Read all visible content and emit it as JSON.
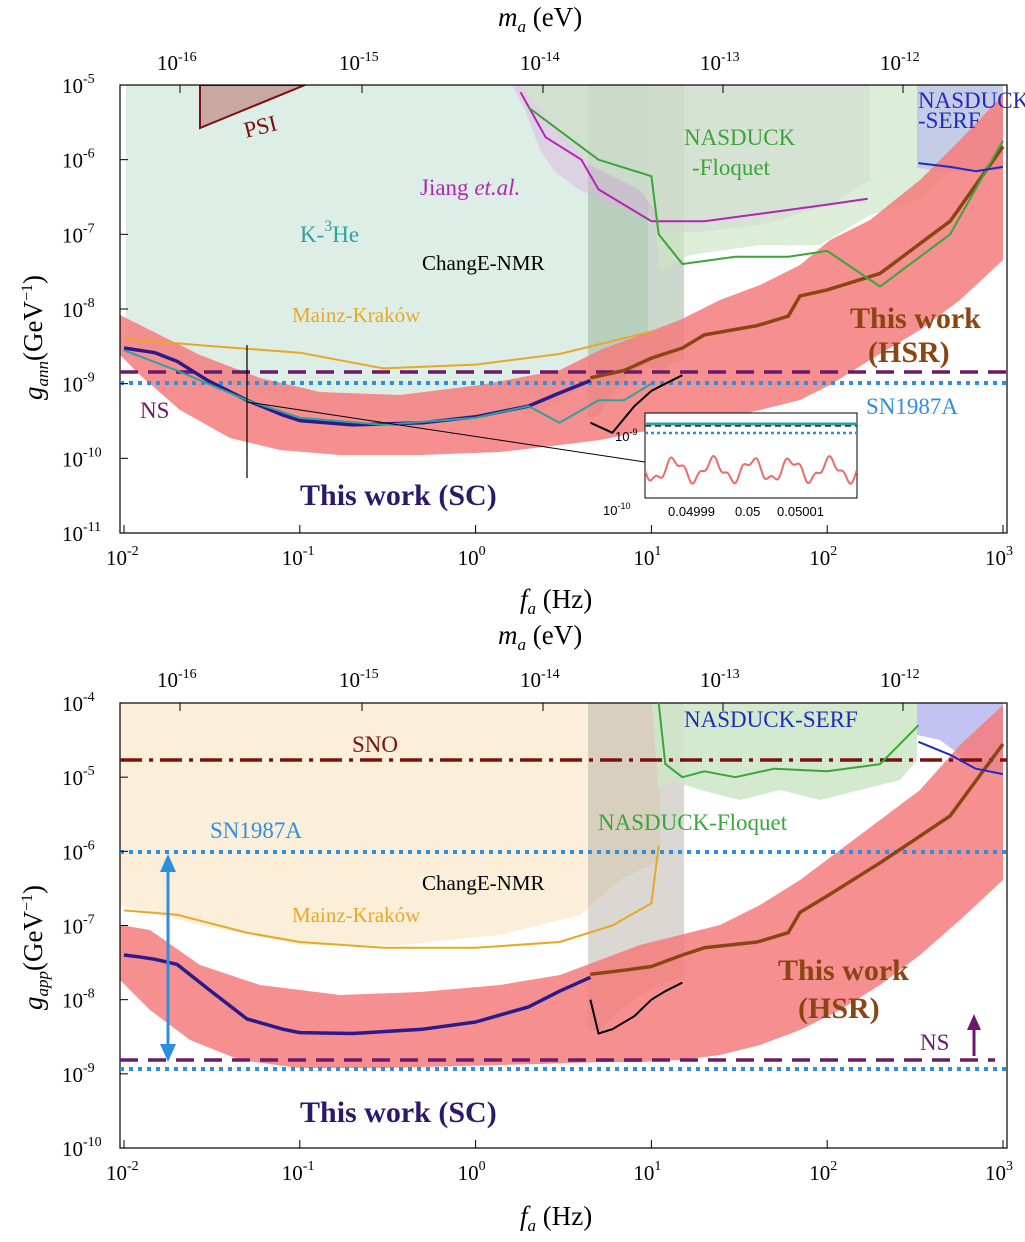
{
  "chart_data": [
    {
      "type": "line",
      "panel": "top",
      "xlabel": "f_a (Hz)",
      "ylabel": "g_ann (GeV^-1)",
      "top_xlabel": "m_a (eV)",
      "xscale": "log",
      "yscale": "log",
      "xlim": [
        0.01,
        1000
      ],
      "ylim": [
        1e-11,
        1e-05
      ],
      "x_ticks": [
        "10^-2",
        "10^-1",
        "10^0",
        "10^1",
        "10^2",
        "10^3"
      ],
      "y_ticks": [
        "10^-11",
        "10^-10",
        "10^-9",
        "10^-8",
        "10^-7",
        "10^-6",
        "10^-5"
      ],
      "top_ticks": [
        "10^-16",
        "10^-15",
        "10^-14",
        "10^-13",
        "10^-12"
      ],
      "series": [
        {
          "name": "This work (SC)",
          "color": "#2a1a8c",
          "x": [
            0.01,
            0.015,
            0.02,
            0.03,
            0.05,
            0.08,
            0.1,
            0.2,
            0.5,
            1,
            2,
            3,
            4.5
          ],
          "y": [
            3e-09,
            2.6e-09,
            2e-09,
            1.1e-09,
            6e-10,
            3.8e-10,
            3.2e-10,
            2.8e-10,
            3e-10,
            3.6e-10,
            5e-10,
            7.5e-10,
            1.1e-09
          ]
        },
        {
          "name": "This work (HSR)",
          "color": "#8b4513",
          "x": [
            4.5,
            7,
            10,
            15,
            20,
            40,
            60,
            70,
            100,
            200,
            500,
            1000
          ],
          "y": [
            1.2e-09,
            1.5e-09,
            2.2e-09,
            3e-09,
            4.5e-09,
            6e-09,
            8e-09,
            1.5e-08,
            1.8e-08,
            3e-08,
            1.5e-07,
            1.5e-06
          ]
        },
        {
          "name": "K-3He",
          "color": "#2aa3a0",
          "x": [
            0.01,
            0.02,
            0.05,
            0.1,
            0.3,
            1,
            2,
            3,
            5,
            7,
            10
          ],
          "y": [
            2.8e-09,
            1.5e-09,
            6e-10,
            3.5e-10,
            2.8e-10,
            3.5e-10,
            5e-10,
            3e-10,
            6e-10,
            6e-10,
            1e-09
          ]
        },
        {
          "name": "Mainz-Kraków",
          "color": "#e8a825",
          "x": [
            0.01,
            0.03,
            0.1,
            0.3,
            1,
            3,
            10
          ],
          "y": [
            4e-09,
            3.2e-09,
            2.6e-09,
            1.6e-09,
            1.8e-09,
            2.5e-09,
            5e-09
          ]
        },
        {
          "name": "ChangE-NMR",
          "color": "#000000",
          "x": [
            4.5,
            6,
            8,
            10,
            12,
            15
          ],
          "y": [
            3e-10,
            2.2e-10,
            5e-10,
            8e-10,
            1e-09,
            1.3e-09
          ]
        },
        {
          "name": "Jiang et.al.",
          "color": "#b326b3",
          "x": [
            1.8,
            2.5,
            4,
            5,
            10,
            20,
            50,
            100,
            170
          ],
          "y": [
            8e-06,
            2e-06,
            1e-06,
            4e-07,
            1.5e-07,
            1.5e-07,
            2e-07,
            2.5e-07,
            3e-07
          ]
        },
        {
          "name": "NASDUCK-Floquet",
          "color": "#3aa63a",
          "x": [
            2,
            5,
            10,
            11,
            15,
            30,
            60,
            100,
            200,
            500,
            1000
          ],
          "y": [
            5e-06,
            1e-06,
            6e-07,
            1e-07,
            4e-08,
            5e-08,
            5e-08,
            6e-08,
            2e-08,
            1e-07,
            1.8e-06
          ]
        },
        {
          "name": "NASDUCK-SERF",
          "color": "#1f2bbf",
          "x": [
            330,
            500,
            700,
            1000
          ],
          "y": [
            9e-07,
            8e-07,
            7e-07,
            8e-07
          ]
        }
      ],
      "constant_limits": [
        {
          "name": "NS",
          "value": 1.3e-09,
          "color": "#6b1a6b",
          "style": "dashed"
        },
        {
          "name": "SN1987A",
          "value": 9e-10,
          "color": "#2e8ee0",
          "style": "dotted"
        }
      ],
      "labels": {
        "psi": "PSI",
        "khe": "K-",
        "khe_sup": "3",
        "khe_tail": "He",
        "jiang": "Jiang ",
        "jiang_it": "et.al.",
        "changE": "ChangE-NMR",
        "mainz": "Mainz-Kraków",
        "nasduck_f1": "NASDUCK",
        "nasduck_f2": "-Floquet",
        "nasduck_s1": "NASDUCK",
        "nasduck_s2": "-SERF",
        "hsr1": "This work",
        "hsr2": "(HSR)",
        "sc": "This work (SC)",
        "ns": "NS",
        "sn": "SN1987A"
      },
      "inset": {
        "x_ticks": [
          "0.04999",
          "0.05",
          "0.05001"
        ],
        "y_ticks": [
          "10^-9",
          "10^-10"
        ]
      }
    },
    {
      "type": "line",
      "panel": "bottom",
      "xlabel": "f_a (Hz)",
      "ylabel": "g_app (GeV^-1)",
      "top_xlabel": "m_a (eV)",
      "xscale": "log",
      "yscale": "log",
      "xlim": [
        0.01,
        1000
      ],
      "ylim": [
        1e-10,
        0.0001
      ],
      "x_ticks": [
        "10^-2",
        "10^-1",
        "10^0",
        "10^1",
        "10^2",
        "10^3"
      ],
      "y_ticks": [
        "10^-10",
        "10^-9",
        "10^-8",
        "10^-7",
        "10^-6",
        "10^-5",
        "10^-4"
      ],
      "top_ticks": [
        "10^-16",
        "10^-15",
        "10^-14",
        "10^-13",
        "10^-12"
      ],
      "series": [
        {
          "name": "This work (SC)",
          "color": "#2a1a8c",
          "x": [
            0.01,
            0.012,
            0.015,
            0.02,
            0.03,
            0.05,
            0.08,
            0.1,
            0.2,
            0.5,
            1,
            2,
            3,
            4.5
          ],
          "y": [
            4e-08,
            3.8e-08,
            3.5e-08,
            3e-08,
            1.4e-08,
            5.5e-09,
            4e-09,
            3.6e-09,
            3.5e-09,
            4e-09,
            5e-09,
            8e-09,
            1.3e-08,
            2e-08
          ]
        },
        {
          "name": "This work (HSR)",
          "color": "#8b4513",
          "x": [
            4.5,
            7,
            10,
            15,
            20,
            40,
            60,
            70,
            100,
            200,
            500,
            1000
          ],
          "y": [
            2.2e-08,
            2.5e-08,
            2.8e-08,
            4e-08,
            5e-08,
            6e-08,
            8e-08,
            1.5e-07,
            2.5e-07,
            7e-07,
            3e-06,
            2.8e-05
          ]
        },
        {
          "name": "Mainz-Kraków",
          "color": "#e8a825",
          "x": [
            0.01,
            0.02,
            0.05,
            0.1,
            0.3,
            1,
            3,
            6,
            10,
            11
          ],
          "y": [
            1.6e-07,
            1.4e-07,
            8e-08,
            6e-08,
            5e-08,
            5e-08,
            6e-08,
            1e-07,
            2e-07,
            1.2e-06
          ]
        },
        {
          "name": "ChangE-NMR",
          "color": "#000000",
          "x": [
            4.5,
            5,
            6,
            8,
            10,
            12,
            15
          ],
          "y": [
            1e-08,
            3.5e-09,
            4e-09,
            6e-09,
            1e-08,
            1.3e-08,
            1.7e-08
          ]
        },
        {
          "name": "NASDUCK-Floquet",
          "color": "#3aa63a",
          "x": [
            11,
            12,
            15,
            20,
            30,
            50,
            100,
            200,
            330
          ],
          "y": [
            0.0001,
            1.5e-05,
            1e-05,
            1.2e-05,
            1e-05,
            1.3e-05,
            1.2e-05,
            1.5e-05,
            5e-05
          ]
        },
        {
          "name": "NASDUCK-SERF",
          "color": "#1f2bbf",
          "x": [
            330,
            500,
            700,
            1000
          ],
          "y": [
            3e-05,
            2e-05,
            1.3e-05,
            1.1e-05
          ]
        }
      ],
      "constant_limits": [
        {
          "name": "SNO",
          "value": 1.7e-05,
          "color": "#7a1010",
          "style": "dashdot"
        },
        {
          "name": "SN1987A",
          "value": 1e-06,
          "color": "#2e8ee0",
          "style": "dotted"
        },
        {
          "name": "NS",
          "value": 1.5e-09,
          "color": "#6b1a6b",
          "style": "dashed"
        },
        {
          "name": "",
          "value": 1.2e-09,
          "color": "#2e8ee0",
          "style": "dotted"
        }
      ],
      "labels": {
        "sno": "SNO",
        "sn": "SN1987A",
        "nasduck_s": "NASDUCK-SERF",
        "nasduck_f": "NASDUCK-Floquet",
        "changE": "ChangE-NMR",
        "mainz": "Mainz-Kraków",
        "hsr1": "This work",
        "hsr2": "(HSR)",
        "sc": "This work (SC)",
        "ns": "NS"
      }
    }
  ]
}
